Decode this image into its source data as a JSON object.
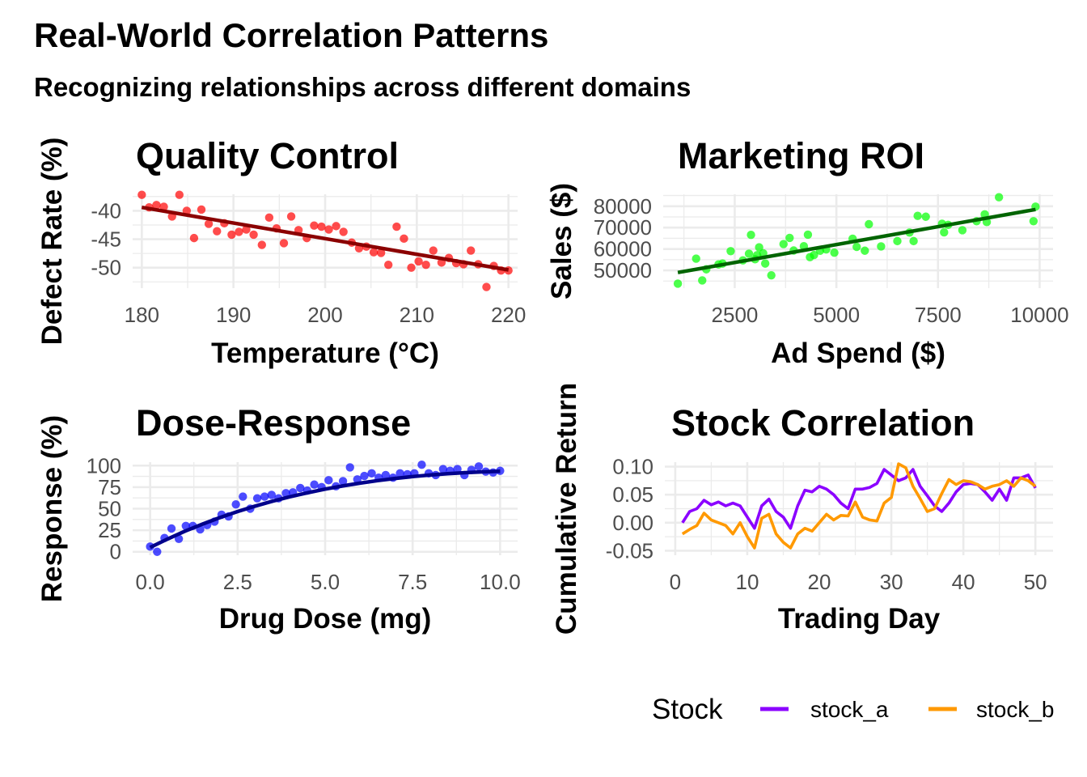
{
  "title": "Real-World Correlation Patterns",
  "subtitle": "Recognizing relationships across different domains",
  "chart_data": [
    {
      "id": "quality",
      "type": "scatter",
      "title": "Quality Control",
      "xlabel": "Temperature (°C)",
      "ylabel": "Defect Rate (%)",
      "xlim": [
        179.0,
        221.0
      ],
      "ylim": [
        -53.6,
        -37.1
      ],
      "x_ticks": [
        180,
        190,
        200,
        210,
        220
      ],
      "x_tick_labels": [
        "180",
        "190",
        "200",
        "210",
        "220"
      ],
      "y_ticks": [
        -40,
        -45,
        -50
      ],
      "y_tick_labels": [
        "-40",
        "-45",
        "-50"
      ],
      "point_color": "#ff0000",
      "line_color": "#8b0000",
      "fit_line": {
        "x": [
          180,
          220
        ],
        "y": [
          -39.4,
          -50.4
        ]
      },
      "points": [
        {
          "x": 180.0,
          "y": -37.2
        },
        {
          "x": 180.8,
          "y": -39.4
        },
        {
          "x": 181.6,
          "y": -39.0
        },
        {
          "x": 182.4,
          "y": -39.3
        },
        {
          "x": 183.3,
          "y": -41.0
        },
        {
          "x": 184.1,
          "y": -37.2
        },
        {
          "x": 184.9,
          "y": -40.0
        },
        {
          "x": 185.7,
          "y": -44.8
        },
        {
          "x": 186.5,
          "y": -39.8
        },
        {
          "x": 187.3,
          "y": -42.3
        },
        {
          "x": 188.2,
          "y": -43.6
        },
        {
          "x": 189.0,
          "y": -42.2
        },
        {
          "x": 189.8,
          "y": -44.2
        },
        {
          "x": 190.6,
          "y": -43.7
        },
        {
          "x": 191.4,
          "y": -43.3
        },
        {
          "x": 192.2,
          "y": -44.2
        },
        {
          "x": 193.1,
          "y": -46.0
        },
        {
          "x": 193.9,
          "y": -41.2
        },
        {
          "x": 194.7,
          "y": -43.1
        },
        {
          "x": 195.5,
          "y": -45.7
        },
        {
          "x": 196.3,
          "y": -41.0
        },
        {
          "x": 197.1,
          "y": -43.4
        },
        {
          "x": 198.0,
          "y": -44.8
        },
        {
          "x": 198.8,
          "y": -42.6
        },
        {
          "x": 199.6,
          "y": -42.8
        },
        {
          "x": 200.4,
          "y": -43.3
        },
        {
          "x": 201.2,
          "y": -42.7
        },
        {
          "x": 202.0,
          "y": -43.7
        },
        {
          "x": 202.9,
          "y": -45.6
        },
        {
          "x": 203.7,
          "y": -46.6
        },
        {
          "x": 204.5,
          "y": -46.3
        },
        {
          "x": 205.3,
          "y": -47.3
        },
        {
          "x": 206.1,
          "y": -47.4
        },
        {
          "x": 206.9,
          "y": -49.5
        },
        {
          "x": 207.8,
          "y": -42.8
        },
        {
          "x": 208.6,
          "y": -44.9
        },
        {
          "x": 209.4,
          "y": -50.0
        },
        {
          "x": 210.2,
          "y": -48.9
        },
        {
          "x": 211.0,
          "y": -49.5
        },
        {
          "x": 211.8,
          "y": -47.0
        },
        {
          "x": 212.7,
          "y": -49.1
        },
        {
          "x": 213.5,
          "y": -48.3
        },
        {
          "x": 214.3,
          "y": -49.2
        },
        {
          "x": 215.1,
          "y": -49.4
        },
        {
          "x": 215.9,
          "y": -47.0
        },
        {
          "x": 216.7,
          "y": -49.4
        },
        {
          "x": 217.6,
          "y": -53.4
        },
        {
          "x": 218.4,
          "y": -49.7
        },
        {
          "x": 219.2,
          "y": -50.5
        },
        {
          "x": 220.0,
          "y": -50.5
        }
      ]
    },
    {
      "id": "marketing",
      "type": "scatter",
      "title": "Marketing ROI",
      "xlabel": "Ad Spend ($)",
      "ylabel": "Sales ($)",
      "xlim": [
        740,
        10330
      ],
      "ylim": [
        41700,
        85600
      ],
      "x_ticks": [
        2500,
        5000,
        7500,
        10000
      ],
      "x_tick_labels": [
        "2500",
        "5000",
        "7500",
        "10000"
      ],
      "y_ticks": [
        50000,
        60000,
        70000,
        80000
      ],
      "y_tick_labels": [
        "50000",
        "60000",
        "70000",
        "80000"
      ],
      "point_color": "#00ff00",
      "line_color": "#006400",
      "fit_line": {
        "x": [
          1100,
          9900
        ],
        "y": [
          49000,
          78500
        ]
      },
      "points": [
        {
          "x": 1100,
          "y": 43800
        },
        {
          "x": 1550,
          "y": 55500
        },
        {
          "x": 1700,
          "y": 45300
        },
        {
          "x": 1800,
          "y": 50500
        },
        {
          "x": 2100,
          "y": 52800
        },
        {
          "x": 2200,
          "y": 53200
        },
        {
          "x": 2400,
          "y": 59000
        },
        {
          "x": 2700,
          "y": 54700
        },
        {
          "x": 2850,
          "y": 57800
        },
        {
          "x": 2900,
          "y": 66600
        },
        {
          "x": 3000,
          "y": 55200
        },
        {
          "x": 3050,
          "y": 57100
        },
        {
          "x": 3100,
          "y": 60800
        },
        {
          "x": 3200,
          "y": 58000
        },
        {
          "x": 3250,
          "y": 53200
        },
        {
          "x": 3400,
          "y": 47700
        },
        {
          "x": 3700,
          "y": 62300
        },
        {
          "x": 3850,
          "y": 65200
        },
        {
          "x": 3950,
          "y": 59300
        },
        {
          "x": 4200,
          "y": 61300
        },
        {
          "x": 4300,
          "y": 66700
        },
        {
          "x": 4350,
          "y": 56200
        },
        {
          "x": 4450,
          "y": 57200
        },
        {
          "x": 4600,
          "y": 59200
        },
        {
          "x": 4750,
          "y": 59800
        },
        {
          "x": 4950,
          "y": 58300
        },
        {
          "x": 5400,
          "y": 64800
        },
        {
          "x": 5500,
          "y": 61000
        },
        {
          "x": 5700,
          "y": 59200
        },
        {
          "x": 5800,
          "y": 71600
        },
        {
          "x": 6100,
          "y": 61200
        },
        {
          "x": 6500,
          "y": 63700
        },
        {
          "x": 6800,
          "y": 67700
        },
        {
          "x": 6900,
          "y": 63700
        },
        {
          "x": 7000,
          "y": 75500
        },
        {
          "x": 7200,
          "y": 75100
        },
        {
          "x": 7600,
          "y": 71800
        },
        {
          "x": 7650,
          "y": 67800
        },
        {
          "x": 7750,
          "y": 71300
        },
        {
          "x": 8100,
          "y": 68800
        },
        {
          "x": 8450,
          "y": 73000
        },
        {
          "x": 8650,
          "y": 76200
        },
        {
          "x": 8700,
          "y": 72600
        },
        {
          "x": 9000,
          "y": 84200
        },
        {
          "x": 9850,
          "y": 73000
        },
        {
          "x": 9900,
          "y": 79800
        }
      ]
    },
    {
      "id": "dose",
      "type": "scatter",
      "title": "Dose-Response",
      "xlabel": "Drug Dose (mg)",
      "ylabel": "Response (%)",
      "xlim": [
        -0.5,
        10.5
      ],
      "ylim": [
        -4,
        104
      ],
      "x_ticks": [
        0.0,
        2.5,
        5.0,
        7.5,
        10.0
      ],
      "x_tick_labels": [
        "0.0",
        "2.5",
        "5.0",
        "7.5",
        "10.0"
      ],
      "y_ticks": [
        0,
        25,
        50,
        75,
        100
      ],
      "y_tick_labels": [
        "0",
        "25",
        "50",
        "75",
        "100"
      ],
      "point_color": "#0000ff",
      "line_color": "#00008b",
      "fit_curve": {
        "x": [
          0.0,
          0.5,
          1.0,
          1.5,
          2.0,
          2.5,
          3.0,
          3.5,
          4.0,
          4.5,
          5.0,
          5.5,
          6.0,
          6.5,
          7.0,
          7.5,
          8.0,
          8.5,
          9.0,
          9.5,
          10.0
        ],
        "y": [
          5.0,
          14.9,
          24.0,
          32.2,
          39.8,
          46.7,
          53.0,
          58.7,
          63.9,
          68.5,
          72.7,
          76.4,
          79.7,
          82.6,
          85.1,
          87.3,
          89.1,
          90.6,
          91.8,
          92.7,
          93.4
        ]
      },
      "points": [
        {
          "x": 0.0,
          "y": 6
        },
        {
          "x": 0.2,
          "y": 0
        },
        {
          "x": 0.41,
          "y": 16
        },
        {
          "x": 0.61,
          "y": 27
        },
        {
          "x": 0.82,
          "y": 15
        },
        {
          "x": 1.02,
          "y": 30
        },
        {
          "x": 1.22,
          "y": 30
        },
        {
          "x": 1.43,
          "y": 26
        },
        {
          "x": 1.63,
          "y": 31
        },
        {
          "x": 1.84,
          "y": 35
        },
        {
          "x": 2.04,
          "y": 43
        },
        {
          "x": 2.24,
          "y": 41
        },
        {
          "x": 2.45,
          "y": 55
        },
        {
          "x": 2.65,
          "y": 64
        },
        {
          "x": 2.86,
          "y": 50
        },
        {
          "x": 3.06,
          "y": 62
        },
        {
          "x": 3.27,
          "y": 64
        },
        {
          "x": 3.47,
          "y": 66
        },
        {
          "x": 3.67,
          "y": 62
        },
        {
          "x": 3.88,
          "y": 68
        },
        {
          "x": 4.08,
          "y": 69
        },
        {
          "x": 4.29,
          "y": 74
        },
        {
          "x": 4.49,
          "y": 71
        },
        {
          "x": 4.69,
          "y": 78
        },
        {
          "x": 4.9,
          "y": 75
        },
        {
          "x": 5.1,
          "y": 83
        },
        {
          "x": 5.31,
          "y": 76
        },
        {
          "x": 5.51,
          "y": 82
        },
        {
          "x": 5.71,
          "y": 98
        },
        {
          "x": 5.92,
          "y": 84
        },
        {
          "x": 6.12,
          "y": 88
        },
        {
          "x": 6.33,
          "y": 91
        },
        {
          "x": 6.53,
          "y": 86
        },
        {
          "x": 6.73,
          "y": 89
        },
        {
          "x": 6.94,
          "y": 86
        },
        {
          "x": 7.14,
          "y": 91
        },
        {
          "x": 7.35,
          "y": 90
        },
        {
          "x": 7.55,
          "y": 91
        },
        {
          "x": 7.76,
          "y": 101
        },
        {
          "x": 7.96,
          "y": 91
        },
        {
          "x": 8.16,
          "y": 89
        },
        {
          "x": 8.37,
          "y": 96
        },
        {
          "x": 8.57,
          "y": 94
        },
        {
          "x": 8.78,
          "y": 96
        },
        {
          "x": 8.98,
          "y": 89
        },
        {
          "x": 9.18,
          "y": 95
        },
        {
          "x": 9.39,
          "y": 99
        },
        {
          "x": 9.59,
          "y": 93
        },
        {
          "x": 9.8,
          "y": 92
        },
        {
          "x": 10.0,
          "y": 94
        }
      ]
    },
    {
      "id": "stocks",
      "type": "line",
      "title": "Stock Correlation",
      "xlabel": "Trading Day",
      "ylabel": "Cumulative Return",
      "xlim": [
        -1.45,
        52.45
      ],
      "ylim": [
        -0.058,
        0.108
      ],
      "x_ticks": [
        0,
        10,
        20,
        30,
        40,
        50
      ],
      "x_tick_labels": [
        "0",
        "10",
        "20",
        "30",
        "40",
        "50"
      ],
      "y_ticks": [
        0.1,
        0.05,
        0.0,
        -0.05
      ],
      "y_tick_labels": [
        "0.10",
        "0.05",
        "0.00",
        "-0.05"
      ],
      "legend": {
        "title": "Stock",
        "position": "bottom-right"
      },
      "x": [
        1,
        2,
        3,
        4,
        5,
        6,
        7,
        8,
        9,
        10,
        11,
        12,
        13,
        14,
        15,
        16,
        17,
        18,
        19,
        20,
        21,
        22,
        23,
        24,
        25,
        26,
        27,
        28,
        29,
        30,
        31,
        32,
        33,
        34,
        35,
        36,
        37,
        38,
        39,
        40,
        41,
        42,
        43,
        44,
        45,
        46,
        47,
        48,
        49,
        50
      ],
      "series": [
        {
          "name": "stock_a",
          "color": "#8b00ff",
          "values": [
            0.0,
            0.02,
            0.025,
            0.04,
            0.032,
            0.037,
            0.03,
            0.035,
            0.03,
            0.01,
            -0.01,
            0.03,
            0.042,
            0.02,
            0.01,
            -0.01,
            0.03,
            0.058,
            0.055,
            0.065,
            0.06,
            0.05,
            0.035,
            0.025,
            0.06,
            0.06,
            0.063,
            0.07,
            0.095,
            0.085,
            0.075,
            0.08,
            0.095,
            0.065,
            0.048,
            0.03,
            0.02,
            0.035,
            0.055,
            0.068,
            0.07,
            0.068,
            0.055,
            0.04,
            0.06,
            0.04,
            0.08,
            0.08,
            0.085,
            0.062
          ]
        },
        {
          "name": "stock_b",
          "color": "#ff9900",
          "values": [
            -0.02,
            -0.012,
            -0.005,
            0.017,
            0.005,
            0.0,
            -0.005,
            -0.02,
            0.0,
            -0.025,
            -0.045,
            0.008,
            0.015,
            -0.02,
            -0.035,
            -0.045,
            -0.02,
            -0.01,
            -0.015,
            0.0,
            0.015,
            0.005,
            0.013,
            0.012,
            0.037,
            0.01,
            0.005,
            0.003,
            0.035,
            0.045,
            0.105,
            0.098,
            0.065,
            0.043,
            0.02,
            0.025,
            0.052,
            0.077,
            0.068,
            0.075,
            0.073,
            0.068,
            0.06,
            0.065,
            0.068,
            0.075,
            0.065,
            0.08,
            0.075,
            0.065
          ]
        }
      ]
    }
  ]
}
